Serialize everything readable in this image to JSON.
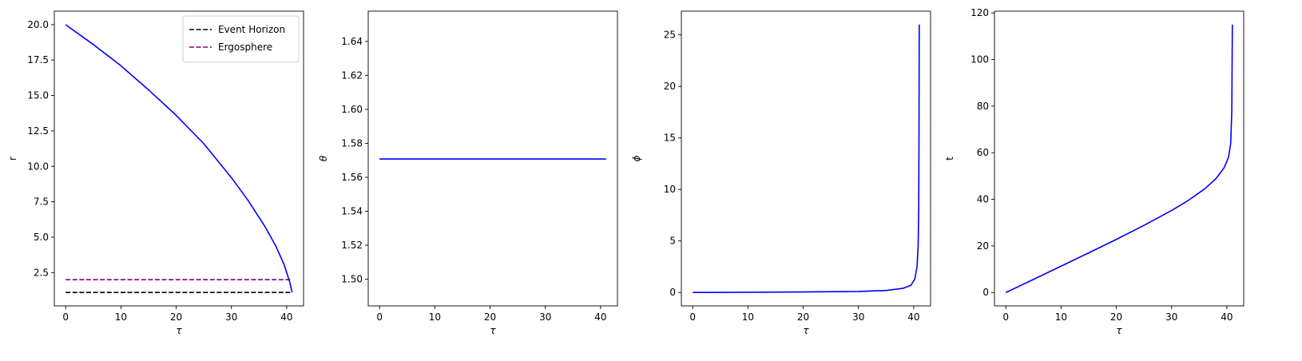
{
  "chart_data": [
    {
      "type": "line",
      "xlabel": "τ",
      "ylabel": "r",
      "xlim": [
        -2.05,
        43.05
      ],
      "ylim": [
        0.15,
        20.95
      ],
      "xticks": [
        0,
        10,
        20,
        30,
        40
      ],
      "xtick_labels": [
        "0",
        "10",
        "20",
        "30",
        "40"
      ],
      "yticks": [
        2.5,
        5.0,
        7.5,
        10.0,
        12.5,
        15.0,
        17.5,
        20.0
      ],
      "ytick_labels": [
        "2.5",
        "5.0",
        "7.5",
        "10.0",
        "12.5",
        "15.0",
        "17.5",
        "20.0"
      ],
      "grid": false,
      "legend": "top-right",
      "series": [
        {
          "color": "#0000ff",
          "dash": "solid",
          "x": [
            0,
            5,
            10,
            15,
            20,
            25,
            30,
            33,
            36,
            38,
            39.5,
            40.5,
            41.0
          ],
          "y": [
            20.0,
            18.6,
            17.1,
            15.4,
            13.6,
            11.6,
            9.2,
            7.6,
            5.8,
            4.4,
            3.1,
            1.9,
            1.1
          ]
        },
        {
          "name": "Event Horizon",
          "color": "#000000",
          "dash": "dashed",
          "x": [
            0,
            41.0
          ],
          "y": [
            1.1,
            1.1
          ]
        },
        {
          "name": "Ergosphere",
          "color": "#800080",
          "dash": "dashed",
          "x": [
            0,
            41.0
          ],
          "y": [
            2.0,
            2.0
          ]
        }
      ]
    },
    {
      "type": "line",
      "xlabel": "τ",
      "ylabel": "θ",
      "xlim": [
        -2.05,
        43.05
      ],
      "ylim": [
        1.4843,
        1.6578
      ],
      "xticks": [
        0,
        10,
        20,
        30,
        40
      ],
      "xtick_labels": [
        "0",
        "10",
        "20",
        "30",
        "40"
      ],
      "yticks": [
        1.5,
        1.52,
        1.54,
        1.56,
        1.58,
        1.6,
        1.62,
        1.64
      ],
      "ytick_labels": [
        "1.50",
        "1.52",
        "1.54",
        "1.56",
        "1.58",
        "1.60",
        "1.62",
        "1.64"
      ],
      "grid": false,
      "series": [
        {
          "color": "#0000ff",
          "dash": "solid",
          "x": [
            0,
            41.0
          ],
          "y": [
            1.5708,
            1.5708
          ]
        }
      ]
    },
    {
      "type": "line",
      "xlabel": "τ",
      "ylabel": "ϕ",
      "xlim": [
        -2.05,
        43.05
      ],
      "ylim": [
        -1.3,
        27.3
      ],
      "xticks": [
        0,
        10,
        20,
        30,
        40
      ],
      "xtick_labels": [
        "0",
        "10",
        "20",
        "30",
        "40"
      ],
      "yticks": [
        0,
        5,
        10,
        15,
        20,
        25
      ],
      "ytick_labels": [
        "0",
        "5",
        "10",
        "15",
        "20",
        "25"
      ],
      "grid": false,
      "series": [
        {
          "color": "#0000ff",
          "dash": "solid",
          "x": [
            0,
            10,
            20,
            30,
            35,
            38,
            39.5,
            40.2,
            40.6,
            40.8,
            40.9,
            40.95,
            41.0
          ],
          "y": [
            0,
            0.02,
            0.05,
            0.1,
            0.2,
            0.4,
            0.7,
            1.3,
            2.5,
            4.5,
            8.0,
            14.0,
            26.0
          ]
        }
      ]
    },
    {
      "type": "line",
      "xlabel": "τ",
      "ylabel": "t",
      "xlim": [
        -2.05,
        43.05
      ],
      "ylim": [
        -5.75,
        120.75
      ],
      "xticks": [
        0,
        10,
        20,
        30,
        40
      ],
      "xtick_labels": [
        "0",
        "10",
        "20",
        "30",
        "40"
      ],
      "yticks": [
        0,
        20,
        40,
        60,
        80,
        100,
        120
      ],
      "ytick_labels": [
        "0",
        "20",
        "40",
        "60",
        "80",
        "100",
        "120"
      ],
      "grid": false,
      "series": [
        {
          "color": "#0000ff",
          "dash": "solid",
          "x": [
            0,
            5,
            10,
            15,
            20,
            25,
            30,
            33,
            36,
            38,
            39.5,
            40.3,
            40.7,
            40.9,
            41.0
          ],
          "y": [
            0,
            5.6,
            11.3,
            17.0,
            22.8,
            28.8,
            35.2,
            39.5,
            44.5,
            48.8,
            53.5,
            58.0,
            64.0,
            78.0,
            115.0
          ]
        }
      ]
    }
  ]
}
